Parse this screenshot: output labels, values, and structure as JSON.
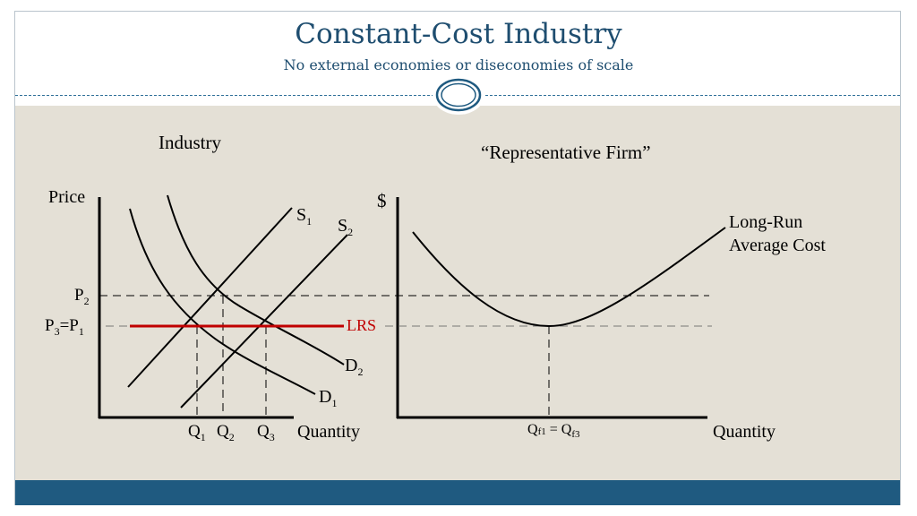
{
  "header": {
    "title": "Constant-Cost Industry",
    "subtitle": "No external economies or diseconomies of scale"
  },
  "industry": {
    "heading": "Industry",
    "y_axis_label": "Price",
    "x_axis_label": "Quantity",
    "supply_1": {
      "base": "S",
      "sub": "1"
    },
    "supply_2": {
      "base": "S",
      "sub": "2"
    },
    "demand_1": {
      "base": "D",
      "sub": "1"
    },
    "demand_2": {
      "base": "D",
      "sub": "2"
    },
    "price_2": {
      "base": "P",
      "sub": "2"
    },
    "price_3": {
      "base": "P",
      "sub": "3"
    },
    "price_eq": "=",
    "price_1": {
      "base": "P",
      "sub": "1"
    },
    "lrs_label": "LRS",
    "q1": {
      "base": "Q",
      "sub": "1"
    },
    "q2": {
      "base": "Q",
      "sub": "2"
    },
    "q3": {
      "base": "Q",
      "sub": "3"
    }
  },
  "firm": {
    "heading": "“Representative Firm”",
    "y_axis_label": "$",
    "x_axis_label": "Quantity",
    "lrac_line1": "Long-Run",
    "lrac_line2": "Average Cost",
    "qf1": {
      "base": "Q",
      "sub": "f1"
    },
    "qf_eq": " = ",
    "qf3": {
      "base": "Q",
      "sub": "f3"
    }
  },
  "colors": {
    "title": "#1f4e70",
    "lrs": "#c00000",
    "content_bg": "#e4e0d6",
    "footer": "#1f5a80"
  }
}
